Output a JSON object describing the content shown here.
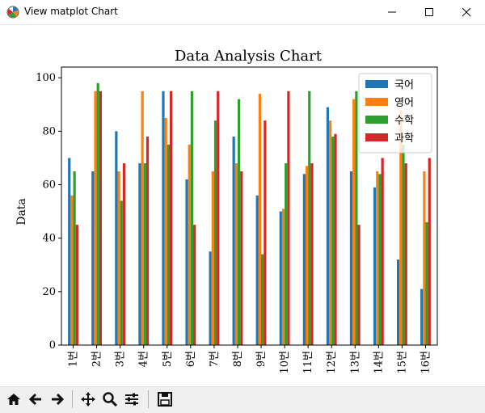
{
  "window": {
    "title": "View matplot Chart"
  },
  "toolbar": {
    "buttons": [
      {
        "icon": "home-icon"
      },
      {
        "icon": "back-arrow-icon"
      },
      {
        "icon": "forward-arrow-icon"
      },
      {
        "icon": "pan-icon"
      },
      {
        "icon": "zoom-icon"
      },
      {
        "icon": "configure-subplots-icon"
      },
      {
        "icon": "save-icon"
      }
    ],
    "coordinates": ""
  },
  "chart_data": {
    "type": "bar",
    "title": "Data Analysis Chart",
    "xlabel": "",
    "ylabel": "Data",
    "ylim": [
      0,
      104
    ],
    "yticks": [
      0,
      20,
      40,
      60,
      80,
      100
    ],
    "categories": [
      "1번",
      "2번",
      "3번",
      "4번",
      "5번",
      "6번",
      "7번",
      "8번",
      "9번",
      "10번",
      "11번",
      "12번",
      "13번",
      "14번",
      "15번",
      "16번"
    ],
    "legend_position": "top-right",
    "series": [
      {
        "name": "국어",
        "color": "#1f77b4",
        "values": [
          70,
          65,
          80,
          68,
          95,
          62,
          35,
          78,
          56,
          50,
          64,
          89,
          65,
          59,
          32,
          21
        ]
      },
      {
        "name": "영어",
        "color": "#ff7f0e",
        "values": [
          56,
          95,
          65,
          95,
          85,
          75,
          65,
          68,
          94,
          51,
          67,
          84,
          92,
          65,
          88,
          65
        ]
      },
      {
        "name": "수학",
        "color": "#2ca02c",
        "values": [
          65,
          98,
          54,
          68,
          75,
          95,
          84,
          92,
          34,
          68,
          95,
          78,
          95,
          64,
          75,
          46
        ]
      },
      {
        "name": "과학",
        "color": "#d62728",
        "values": [
          45,
          95,
          68,
          78,
          95,
          45,
          95,
          65,
          84,
          95,
          68,
          79,
          45,
          70,
          68,
          70
        ]
      }
    ]
  }
}
